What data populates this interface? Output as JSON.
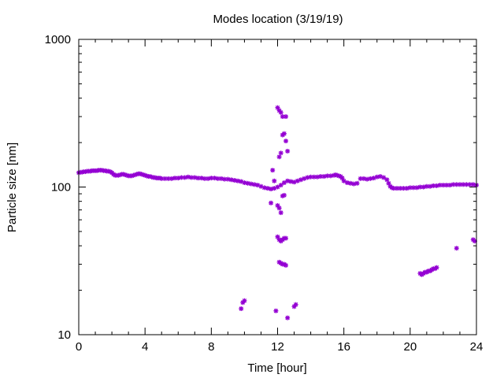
{
  "chart_data": {
    "type": "scatter",
    "title": "Modes location (3/19/19)",
    "xlabel": "Time [hour]",
    "ylabel": "Particle size [nm]",
    "xlim": [
      0,
      24
    ],
    "ylim": [
      10,
      1000
    ],
    "yscale": "log",
    "grid": false,
    "x_ticks": [
      0,
      4,
      8,
      12,
      16,
      20,
      24
    ],
    "x_tick_labels": [
      "0",
      "4",
      "8",
      "12",
      "16",
      "20",
      "24"
    ],
    "x_minor_ticks": [
      1,
      2,
      3,
      5,
      6,
      7,
      9,
      10,
      11,
      13,
      14,
      15,
      17,
      18,
      19,
      21,
      22,
      23
    ],
    "y_ticks": [
      10,
      100,
      1000
    ],
    "y_tick_labels": [
      "10",
      "100",
      "1000"
    ],
    "marker_color": "#9400d3",
    "series": [
      {
        "marker": "asterisk",
        "color": "#9400d3",
        "points": [
          [
            0.0,
            125
          ],
          [
            0.1,
            126
          ],
          [
            0.2,
            126
          ],
          [
            0.3,
            127
          ],
          [
            0.4,
            127
          ],
          [
            0.5,
            128
          ],
          [
            0.6,
            128
          ],
          [
            0.7,
            128
          ],
          [
            0.8,
            129
          ],
          [
            0.9,
            129
          ],
          [
            1.0,
            129
          ],
          [
            1.1,
            129
          ],
          [
            1.2,
            130
          ],
          [
            1.3,
            130
          ],
          [
            1.4,
            130
          ],
          [
            1.5,
            129
          ],
          [
            1.6,
            129
          ],
          [
            1.7,
            128
          ],
          [
            1.8,
            128
          ],
          [
            1.9,
            127
          ],
          [
            2.0,
            125
          ],
          [
            2.1,
            122
          ],
          [
            2.2,
            120
          ],
          [
            2.3,
            120
          ],
          [
            2.4,
            120
          ],
          [
            2.5,
            121
          ],
          [
            2.6,
            122
          ],
          [
            2.7,
            122
          ],
          [
            2.8,
            121
          ],
          [
            2.9,
            120
          ],
          [
            3.0,
            119
          ],
          [
            3.1,
            119
          ],
          [
            3.2,
            119
          ],
          [
            3.3,
            120
          ],
          [
            3.4,
            121
          ],
          [
            3.5,
            122
          ],
          [
            3.6,
            123
          ],
          [
            3.7,
            123
          ],
          [
            3.8,
            122
          ],
          [
            3.9,
            121
          ],
          [
            4.0,
            120
          ],
          [
            4.1,
            119
          ],
          [
            4.2,
            118
          ],
          [
            4.3,
            118
          ],
          [
            4.4,
            117
          ],
          [
            4.5,
            116
          ],
          [
            4.6,
            116
          ],
          [
            4.7,
            115
          ],
          [
            4.8,
            115
          ],
          [
            4.9,
            115
          ],
          [
            5.0,
            114
          ],
          [
            5.2,
            114
          ],
          [
            5.4,
            114
          ],
          [
            5.6,
            114
          ],
          [
            5.8,
            115
          ],
          [
            6.0,
            115
          ],
          [
            6.2,
            116
          ],
          [
            6.4,
            116
          ],
          [
            6.6,
            117
          ],
          [
            6.8,
            116
          ],
          [
            7.0,
            116
          ],
          [
            7.2,
            115
          ],
          [
            7.4,
            115
          ],
          [
            7.6,
            114
          ],
          [
            7.8,
            114
          ],
          [
            8.0,
            115
          ],
          [
            8.2,
            115
          ],
          [
            8.4,
            114
          ],
          [
            8.6,
            114
          ],
          [
            8.8,
            113
          ],
          [
            9.0,
            113
          ],
          [
            9.2,
            112
          ],
          [
            9.4,
            111
          ],
          [
            9.6,
            110
          ],
          [
            9.8,
            109
          ],
          [
            10.0,
            107
          ],
          [
            10.2,
            106
          ],
          [
            10.4,
            105
          ],
          [
            10.6,
            104
          ],
          [
            10.8,
            103
          ],
          [
            11.0,
            101
          ],
          [
            11.2,
            99
          ],
          [
            11.4,
            98
          ],
          [
            11.6,
            97
          ],
          [
            11.8,
            98
          ],
          [
            12.0,
            100
          ],
          [
            12.2,
            103
          ],
          [
            12.4,
            107
          ],
          [
            12.6,
            110
          ],
          [
            12.8,
            109
          ],
          [
            13.0,
            108
          ],
          [
            13.2,
            110
          ],
          [
            13.4,
            112
          ],
          [
            13.6,
            114
          ],
          [
            13.8,
            116
          ],
          [
            14.0,
            117
          ],
          [
            14.2,
            117
          ],
          [
            14.4,
            117
          ],
          [
            14.6,
            118
          ],
          [
            14.8,
            118
          ],
          [
            15.0,
            119
          ],
          [
            15.2,
            119
          ],
          [
            15.4,
            120
          ],
          [
            15.5,
            121
          ],
          [
            15.6,
            120
          ],
          [
            15.7,
            119
          ],
          [
            15.8,
            118
          ],
          [
            15.9,
            115
          ],
          [
            16.0,
            110
          ],
          [
            16.2,
            107
          ],
          [
            16.4,
            106
          ],
          [
            16.6,
            105
          ],
          [
            16.8,
            106
          ],
          [
            17.0,
            114
          ],
          [
            17.2,
            114
          ],
          [
            17.4,
            113
          ],
          [
            17.6,
            114
          ],
          [
            17.8,
            115
          ],
          [
            18.0,
            117
          ],
          [
            18.2,
            118
          ],
          [
            18.4,
            116
          ],
          [
            18.6,
            112
          ],
          [
            18.7,
            106
          ],
          [
            18.8,
            101
          ],
          [
            18.9,
            99
          ],
          [
            19.0,
            98
          ],
          [
            19.2,
            98
          ],
          [
            19.4,
            98
          ],
          [
            19.6,
            98
          ],
          [
            19.8,
            98
          ],
          [
            20.0,
            99
          ],
          [
            20.2,
            99
          ],
          [
            20.4,
            99
          ],
          [
            20.6,
            100
          ],
          [
            20.8,
            100
          ],
          [
            21.0,
            101
          ],
          [
            21.2,
            101
          ],
          [
            21.4,
            102
          ],
          [
            21.6,
            102
          ],
          [
            21.8,
            103
          ],
          [
            22.0,
            103
          ],
          [
            22.2,
            103
          ],
          [
            22.4,
            103
          ],
          [
            22.6,
            104
          ],
          [
            22.8,
            104
          ],
          [
            23.0,
            104
          ],
          [
            23.2,
            104
          ],
          [
            23.4,
            104
          ],
          [
            23.6,
            104
          ],
          [
            23.8,
            104
          ],
          [
            24.0,
            103
          ],
          [
            9.8,
            15
          ],
          [
            9.9,
            16.5
          ],
          [
            10.0,
            17
          ],
          [
            11.6,
            78
          ],
          [
            11.7,
            130
          ],
          [
            11.8,
            110
          ],
          [
            11.9,
            14.5
          ],
          [
            12.0,
            345
          ],
          [
            12.1,
            330
          ],
          [
            12.2,
            320
          ],
          [
            12.3,
            300
          ],
          [
            12.1,
            160
          ],
          [
            12.2,
            170
          ],
          [
            12.3,
            225
          ],
          [
            12.4,
            230
          ],
          [
            12.5,
            205
          ],
          [
            12.6,
            175
          ],
          [
            12.5,
            300
          ],
          [
            12.0,
            75
          ],
          [
            12.1,
            72
          ],
          [
            12.2,
            67
          ],
          [
            12.3,
            87
          ],
          [
            12.4,
            88
          ],
          [
            12.0,
            46
          ],
          [
            12.1,
            44
          ],
          [
            12.2,
            43
          ],
          [
            12.3,
            44
          ],
          [
            12.4,
            45
          ],
          [
            12.5,
            45
          ],
          [
            12.1,
            31
          ],
          [
            12.2,
            30.5
          ],
          [
            12.3,
            30
          ],
          [
            12.4,
            30
          ],
          [
            12.5,
            29.5
          ],
          [
            12.6,
            13
          ],
          [
            13.0,
            15.5
          ],
          [
            13.1,
            16
          ],
          [
            20.6,
            26
          ],
          [
            20.7,
            25.5
          ],
          [
            20.8,
            26
          ],
          [
            20.9,
            26.5
          ],
          [
            21.0,
            26.5
          ],
          [
            21.1,
            27
          ],
          [
            21.2,
            27
          ],
          [
            21.3,
            27.5
          ],
          [
            21.4,
            28
          ],
          [
            21.5,
            28
          ],
          [
            21.6,
            28.5
          ],
          [
            22.8,
            38.5
          ],
          [
            23.8,
            44
          ],
          [
            23.9,
            43
          ]
        ]
      }
    ]
  }
}
